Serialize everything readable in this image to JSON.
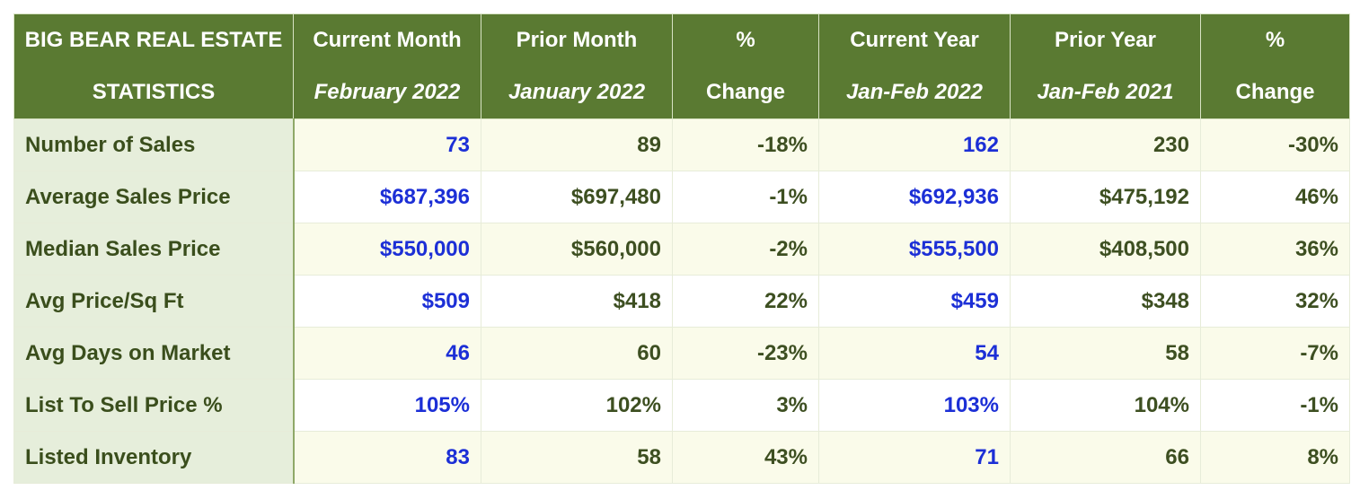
{
  "header": {
    "col0": {
      "line1": "BIG BEAR REAL ESTATE",
      "line2": "STATISTICS"
    },
    "col1": {
      "line1": "Current Month",
      "line2": "February 2022"
    },
    "col2": {
      "line1": "Prior Month",
      "line2": "January 2022"
    },
    "col3": {
      "line1": "%",
      "line2": "Change"
    },
    "col4": {
      "line1": "Current Year",
      "line2": "Jan-Feb 2022"
    },
    "col5": {
      "line1": "Prior Year",
      "line2": "Jan-Feb 2021"
    },
    "col6": {
      "line1": "%",
      "line2": "Change"
    }
  },
  "rows": [
    {
      "label": "Number of Sales",
      "current_month": "73",
      "prior_month": "89",
      "month_change": "-18%",
      "current_year": "162",
      "prior_year": "230",
      "year_change": "-30%"
    },
    {
      "label": "Average Sales Price",
      "current_month": "$687,396",
      "prior_month": "$697,480",
      "month_change": "-1%",
      "current_year": "$692,936",
      "prior_year": "$475,192",
      "year_change": "46%"
    },
    {
      "label": "Median Sales Price",
      "current_month": "$550,000",
      "prior_month": "$560,000",
      "month_change": "-2%",
      "current_year": "$555,500",
      "prior_year": "$408,500",
      "year_change": "36%"
    },
    {
      "label": "Avg Price/Sq Ft",
      "current_month": "$509",
      "prior_month": "$418",
      "month_change": "22%",
      "current_year": "$459",
      "prior_year": "$348",
      "year_change": "32%"
    },
    {
      "label": "Avg Days on Market",
      "current_month": "46",
      "prior_month": "60",
      "month_change": "-23%",
      "current_year": "54",
      "prior_year": "58",
      "year_change": "-7%"
    },
    {
      "label": "List To Sell Price %",
      "current_month": "105%",
      "prior_month": "102%",
      "month_change": "3%",
      "current_year": "103%",
      "prior_year": "104%",
      "year_change": "-1%"
    },
    {
      "label": "Listed Inventory",
      "current_month": "83",
      "prior_month": "58",
      "month_change": "43%",
      "current_year": "71",
      "prior_year": "66",
      "year_change": "8%"
    }
  ],
  "colors": {
    "header_bg": "#5a7a32",
    "label_bg": "#e6eedb",
    "highlight_text": "#1c2fd6",
    "body_text": "#3d4f21"
  }
}
